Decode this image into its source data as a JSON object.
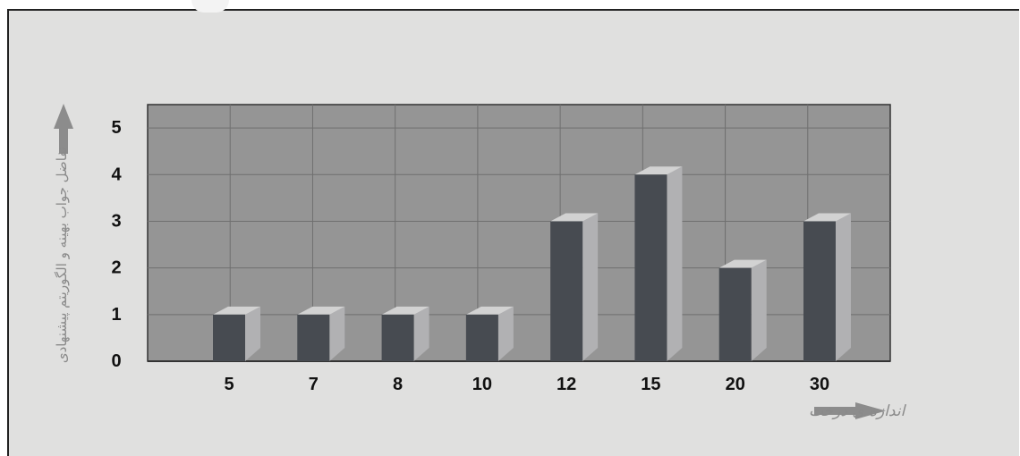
{
  "chart_data": {
    "type": "bar",
    "categories": [
      "5",
      "7",
      "8",
      "10",
      "12",
      "15",
      "20",
      "30"
    ],
    "values": [
      1,
      1,
      1,
      1,
      3,
      4,
      2,
      3
    ],
    "yticks": [
      "0",
      "1",
      "2",
      "3",
      "4",
      "5"
    ],
    "ylim": [
      0,
      5.5
    ],
    "xlabel": "اندازه ی درخت",
    "ylabel": "تفاضل جواب بهینه و الگوریتم پیشنهادی",
    "grid": true,
    "colors": {
      "plot_bg": "#959595",
      "bar_front": "#474b51",
      "bar_side": "#b1b1b3",
      "bar_top": "#d2d2d2",
      "grid": "#6f6f6f",
      "arrow": "#8c8c8c"
    }
  }
}
